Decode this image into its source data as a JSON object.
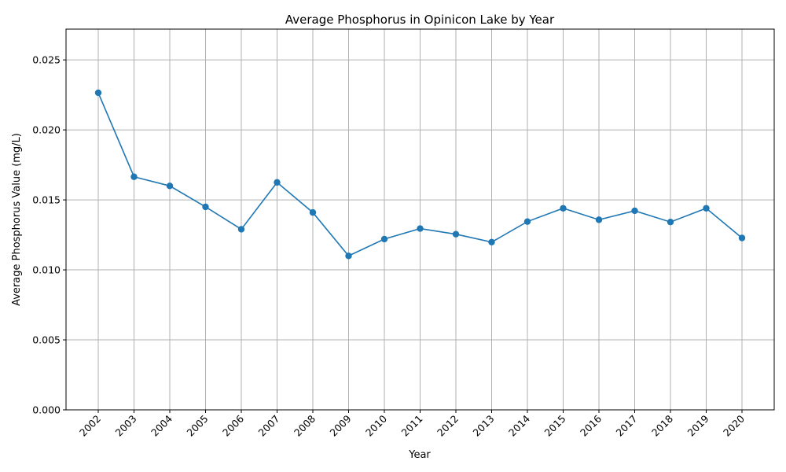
{
  "chart_data": {
    "type": "line",
    "title": "Average Phosphorus in Opinicon Lake by Year",
    "xlabel": "Year",
    "ylabel": "Average Phosphorus Value (mg/L)",
    "categories": [
      "2002",
      "2003",
      "2004",
      "2005",
      "2006",
      "2007",
      "2008",
      "2009",
      "2010",
      "2011",
      "2012",
      "2013",
      "2014",
      "2015",
      "2016",
      "2017",
      "2018",
      "2019",
      "2020"
    ],
    "values": [
      0.02265,
      0.01665,
      0.016,
      0.0145,
      0.0129,
      0.01625,
      0.0141,
      0.011,
      0.0122,
      0.01295,
      0.01255,
      0.01198,
      0.01345,
      0.0144,
      0.01358,
      0.01422,
      0.01342,
      0.0144,
      0.01228
    ],
    "yticks": [
      "0.000",
      "0.005",
      "0.010",
      "0.015",
      "0.020",
      "0.025"
    ],
    "ylim": [
      0,
      0.0272
    ],
    "grid": true,
    "line_color": "#1f77b4"
  }
}
